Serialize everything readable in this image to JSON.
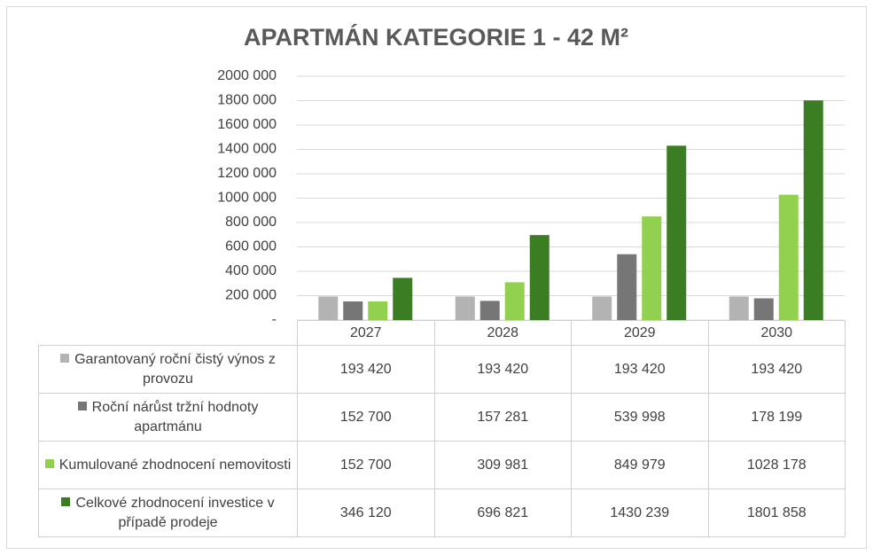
{
  "chart_data": {
    "type": "bar",
    "title": "APARTMÁN KATEGORIE 1 - 42 M²",
    "categories": [
      "2027",
      "2028",
      "2029",
      "2030"
    ],
    "series": [
      {
        "name": "Garantovaný roční čistý výnos z provozu",
        "color": "#b3b3b3",
        "values": [
          193420,
          193420,
          193420,
          193420
        ],
        "value_labels": [
          "193 420",
          "193 420",
          "193 420",
          "193 420"
        ]
      },
      {
        "name": "Roční nárůst tržní hodnoty apartmánu",
        "color": "#767676",
        "values": [
          152700,
          157281,
          539998,
          178199
        ],
        "value_labels": [
          "152 700",
          "157 281",
          "539 998",
          "178 199"
        ]
      },
      {
        "name": "Kumulované zhodnocení nemovitosti",
        "color": "#92d050",
        "values": [
          152700,
          309981,
          849979,
          1028178
        ],
        "value_labels": [
          "152 700",
          "309 981",
          "849 979",
          "1028 178"
        ]
      },
      {
        "name": "Celkové zhodnocení investice v případě prodeje",
        "color": "#3a7d22",
        "values": [
          346120,
          696821,
          1430239,
          1801858
        ],
        "value_labels": [
          "346 120",
          "696 821",
          "1430 239",
          "1801 858"
        ]
      }
    ],
    "ylim": [
      0,
      2000000
    ],
    "yticks": [
      {
        "value": 0,
        "label": "-"
      },
      {
        "value": 200000,
        "label": "200 000"
      },
      {
        "value": 400000,
        "label": "400 000"
      },
      {
        "value": 600000,
        "label": "600 000"
      },
      {
        "value": 800000,
        "label": "800 000"
      },
      {
        "value": 1000000,
        "label": "1000 000"
      },
      {
        "value": 1200000,
        "label": "1200 000"
      },
      {
        "value": 1400000,
        "label": "1400 000"
      },
      {
        "value": 1600000,
        "label": "1600 000"
      },
      {
        "value": 1800000,
        "label": "1800 000"
      },
      {
        "value": 2000000,
        "label": "2000 000"
      }
    ],
    "grid": true
  }
}
